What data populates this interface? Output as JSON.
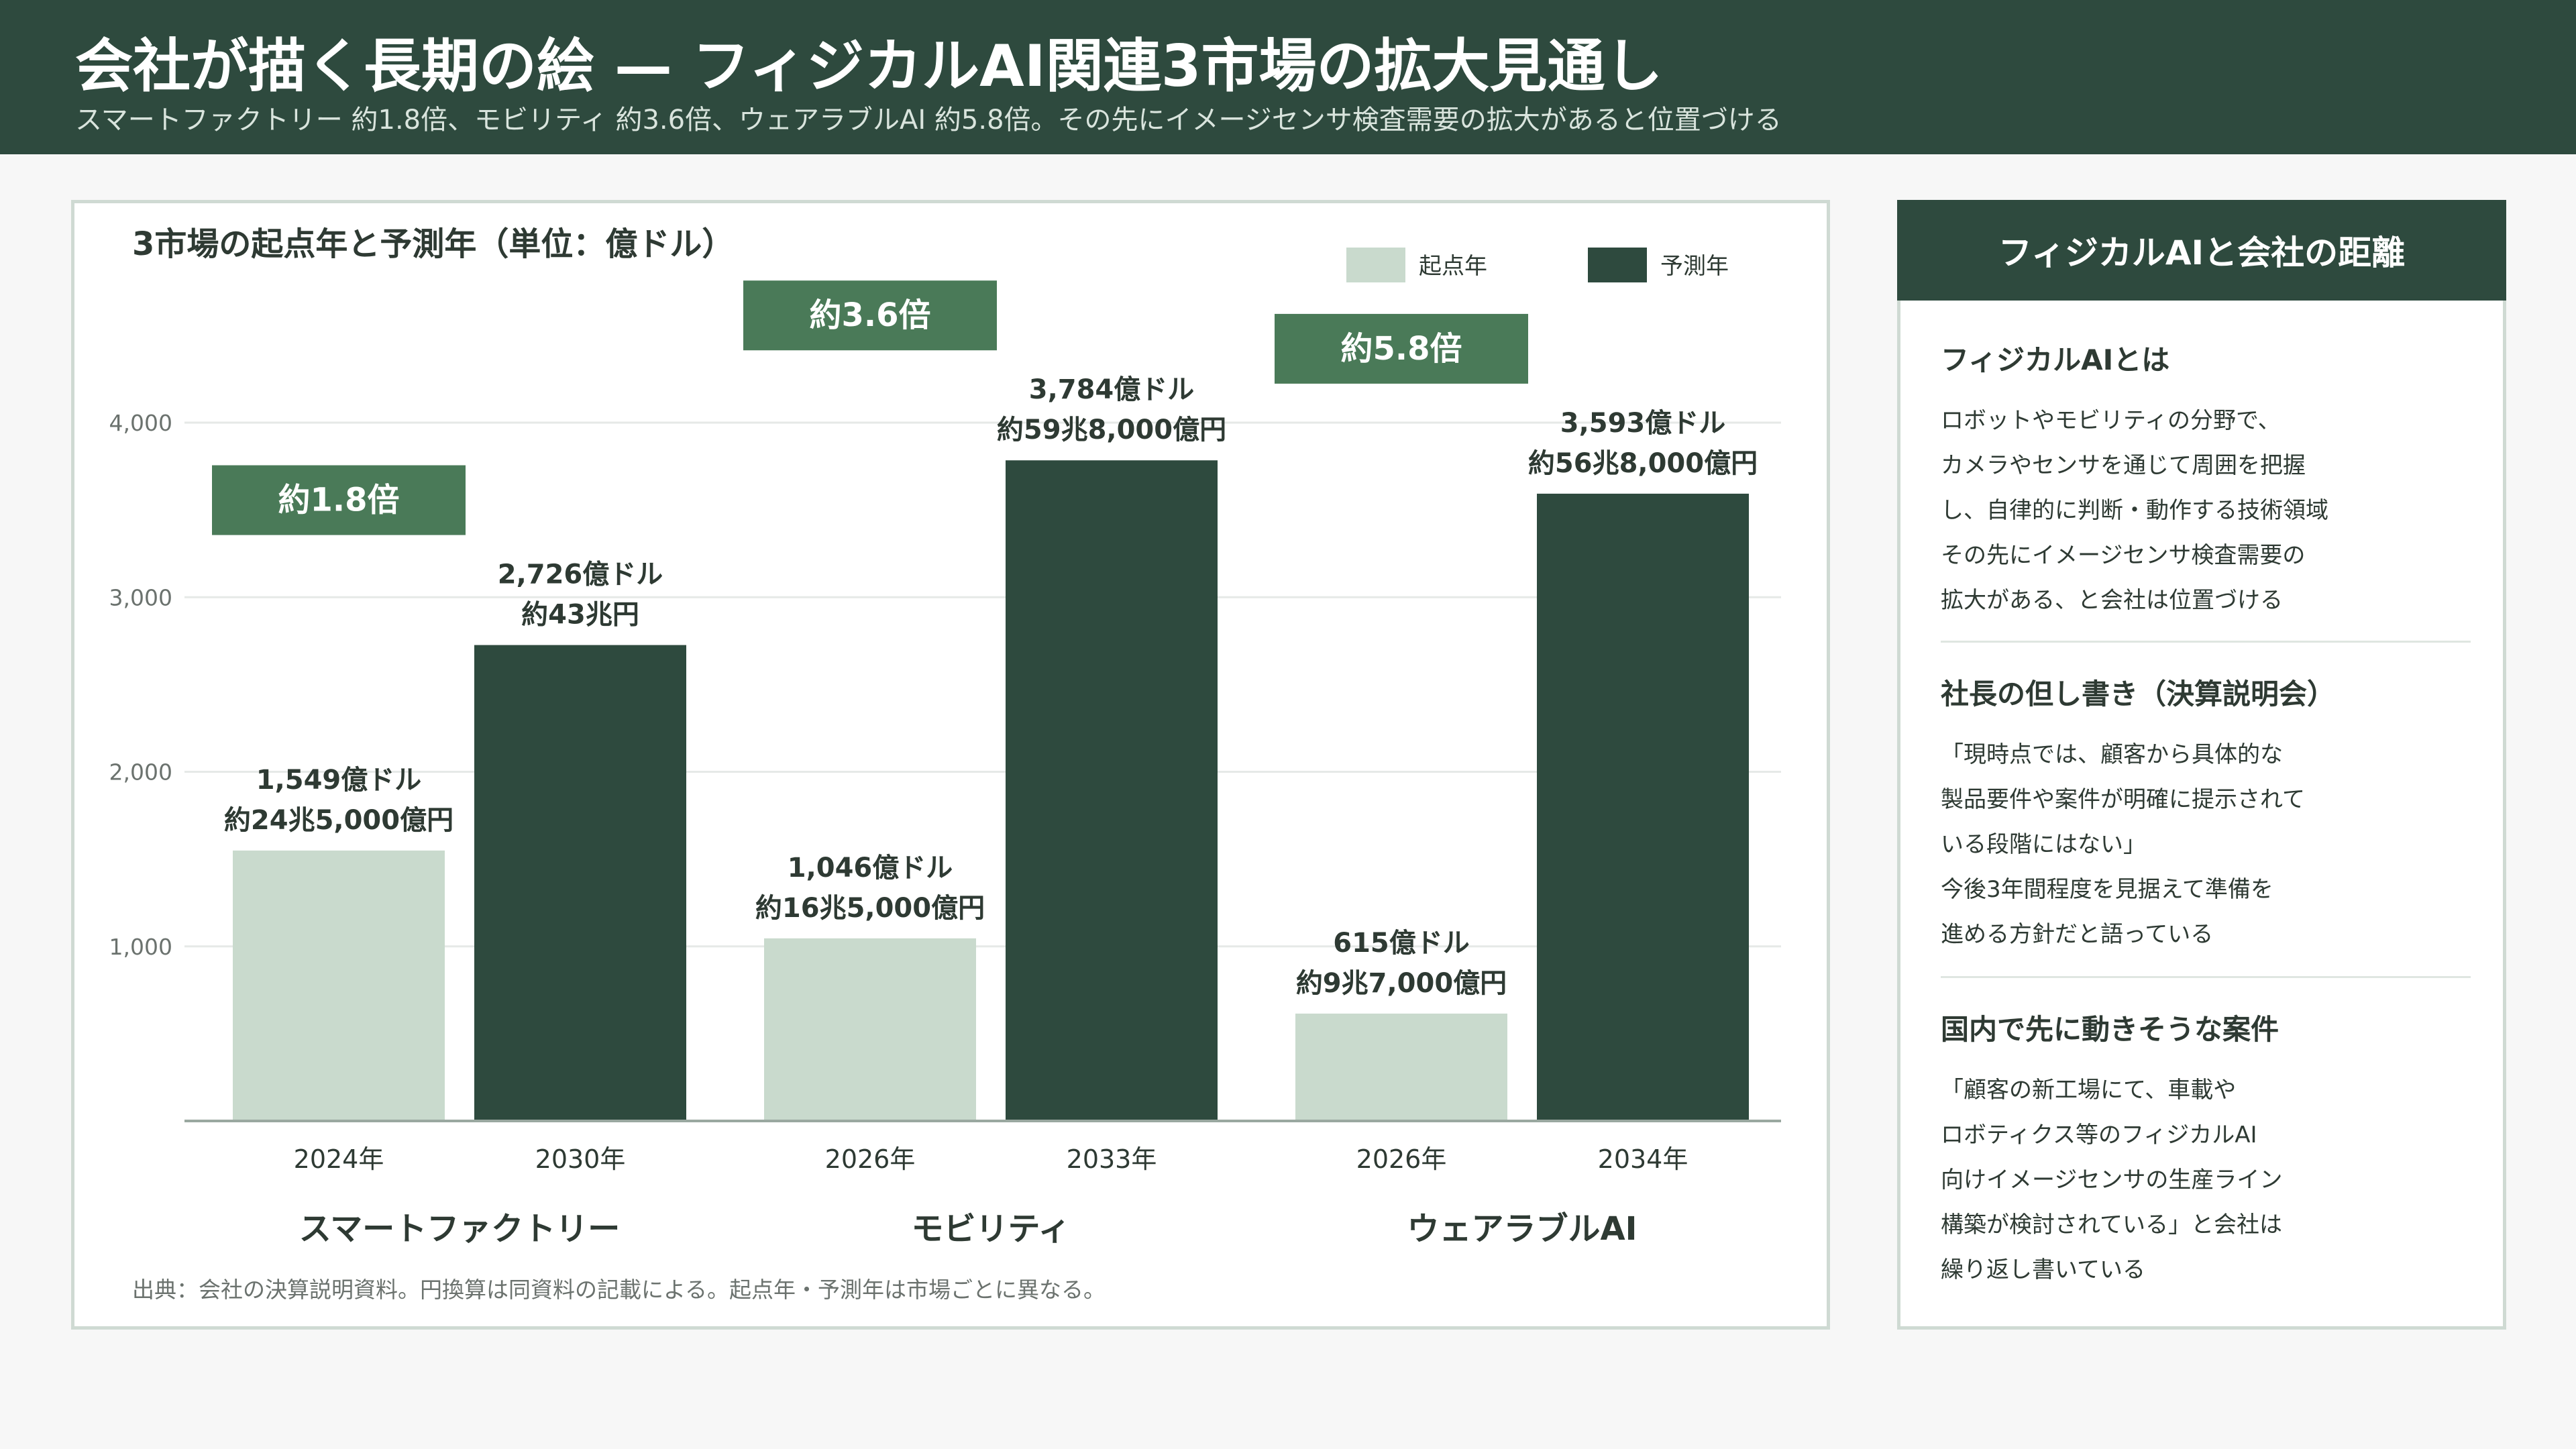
{
  "header": {
    "title": "会社が描く長期の絵 — フィジカルAI関連3市場の拡大見通し",
    "subtitle": "スマートファクトリー 約1.8倍、モビリティ 約3.6倍、ウェアラブルAI 約5.8倍。その先にイメージセンサ検査需要の拡大があると位置づける"
  },
  "colors": {
    "header_bg": "#2e4a3e",
    "start_bar": "#c9dacd",
    "forecast_bar": "#2e4a3e",
    "badge": "#4a7a58"
  },
  "chart_data": {
    "type": "bar",
    "title": "3市場の起点年と予測年（単位：億ドル）",
    "ylim": [
      0,
      4000
    ],
    "yticks": [
      1000,
      2000,
      3000,
      4000
    ],
    "ytick_labels": [
      "1,000",
      "2,000",
      "3,000",
      "4,000"
    ],
    "grid": true,
    "legend_position": "top-right",
    "legend": [
      {
        "name": "起点年",
        "color": "#c9dacd"
      },
      {
        "name": "予測年",
        "color": "#2e4a3e"
      }
    ],
    "groups": [
      {
        "name": "スマートファクトリー",
        "ratio_label": "約1.8倍",
        "bars": [
          {
            "series": "起点年",
            "year": "2024年",
            "value": 1549,
            "label1": "1,549億ドル",
            "label2": "約24兆5,000億円"
          },
          {
            "series": "予測年",
            "year": "2030年",
            "value": 2726,
            "label1": "2,726億ドル",
            "label2": "約43兆円"
          }
        ]
      },
      {
        "name": "モビリティ",
        "ratio_label": "約3.6倍",
        "bars": [
          {
            "series": "起点年",
            "year": "2026年",
            "value": 1046,
            "label1": "1,046億ドル",
            "label2": "約16兆5,000億円"
          },
          {
            "series": "予測年",
            "year": "2033年",
            "value": 3784,
            "label1": "3,784億ドル",
            "label2": "約59兆8,000億円"
          }
        ]
      },
      {
        "name": "ウェアラブルAI",
        "ratio_label": "約5.8倍",
        "bars": [
          {
            "series": "起点年",
            "year": "2026年",
            "value": 615,
            "label1": "615億ドル",
            "label2": "約9兆7,000億円"
          },
          {
            "series": "予測年",
            "year": "2034年",
            "value": 3593,
            "label1": "3,593億ドル",
            "label2": "約56兆8,000億円"
          }
        ]
      }
    ],
    "source_note": "出典：会社の決算説明資料。円換算は同資料の記載による。起点年・予測年は市場ごとに異なる。"
  },
  "side": {
    "title": "フィジカルAIと会社の距離",
    "sections": [
      {
        "heading": "フィジカルAIとは",
        "lines": [
          "ロボットやモビリティの分野で、",
          "カメラやセンサを通じて周囲を把握",
          "し、自律的に判断・動作する技術領域",
          "その先にイメージセンサ検査需要の",
          "拡大がある、と会社は位置づける"
        ]
      },
      {
        "heading": "社長の但し書き（決算説明会）",
        "lines": [
          "「現時点では、顧客から具体的な",
          "製品要件や案件が明確に提示されて",
          "いる段階にはない」",
          "今後3年間程度を見据えて準備を",
          "進める方針だと語っている"
        ]
      },
      {
        "heading": "国内で先に動きそうな案件",
        "lines": [
          "「顧客の新工場にて、車載や",
          "ロボティクス等のフィジカルAI",
          "向けイメージセンサの生産ライン",
          "構築が検討されている」と会社は",
          "繰り返し書いている"
        ]
      }
    ]
  }
}
